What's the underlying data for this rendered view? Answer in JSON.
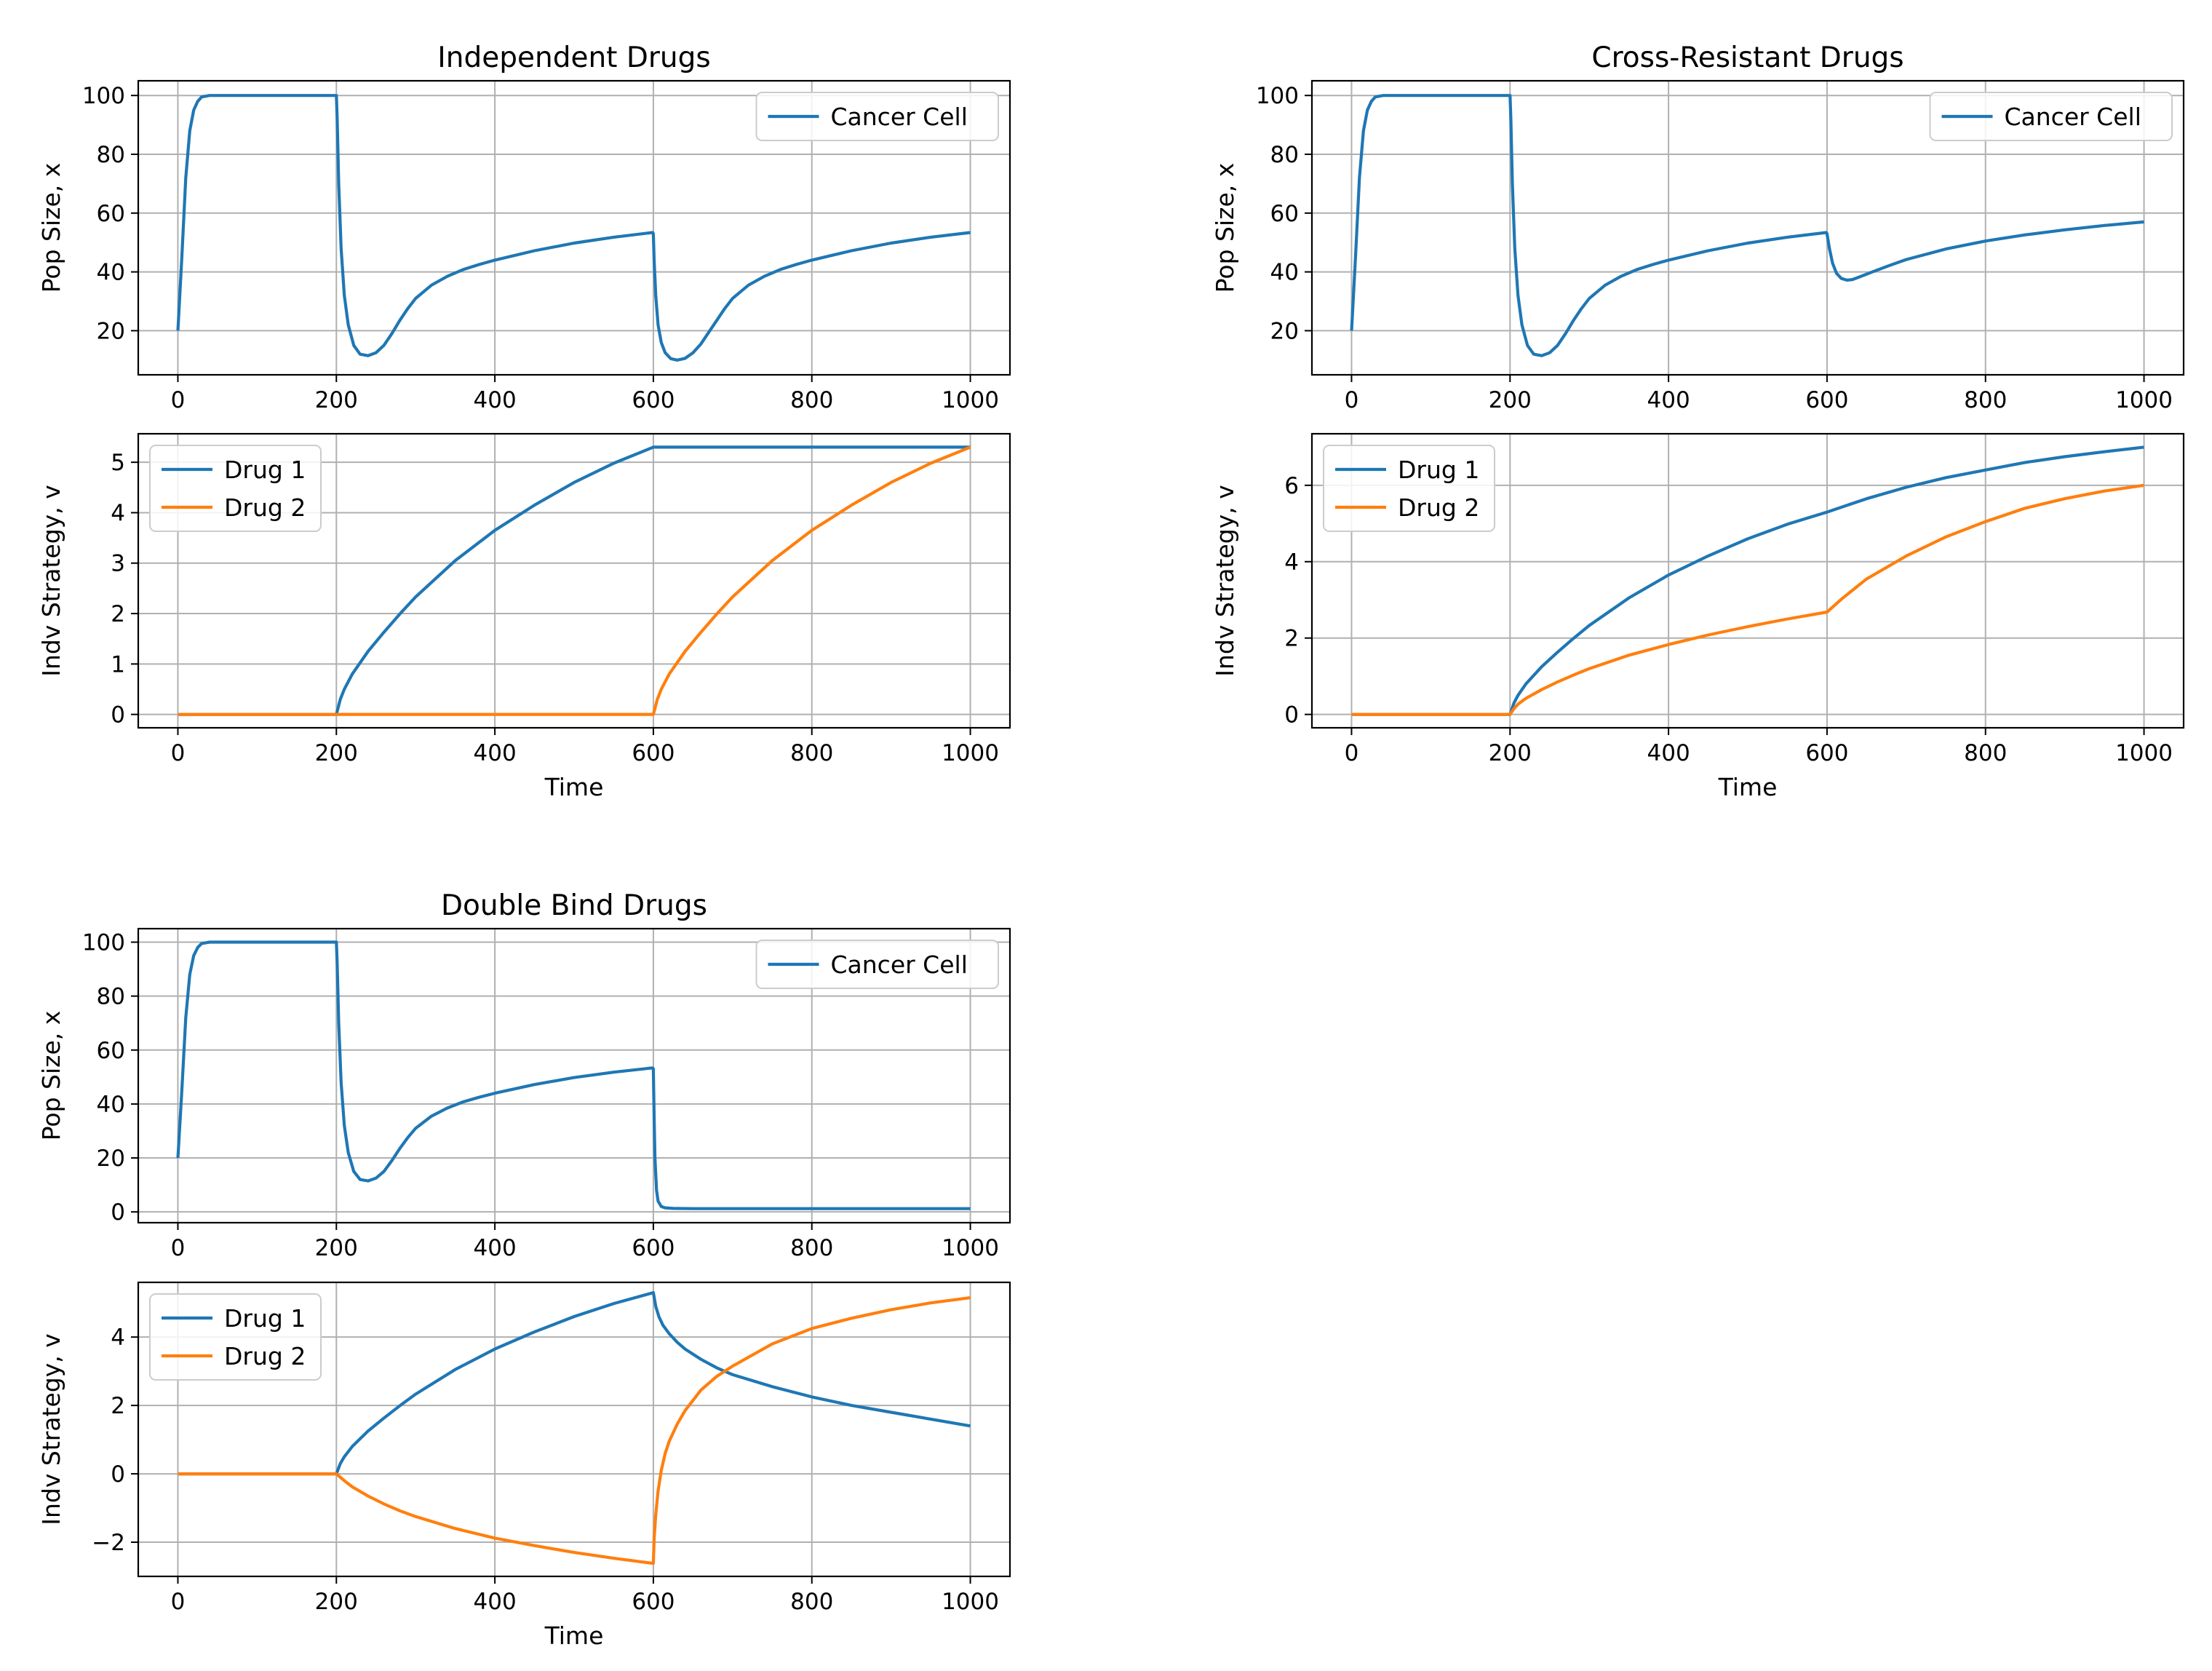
{
  "figure": {
    "background": "#ffffff"
  },
  "colors": {
    "series1": "#1f77b4",
    "series2": "#ff7f0e",
    "grid": "#b0b0b0",
    "axes": "#000000",
    "legend_border": "#cccccc"
  },
  "chart_data": [
    {
      "id": "independent-pop",
      "type": "line",
      "title": "Independent Drugs",
      "xlabel": "",
      "ylabel": "Pop Size, x",
      "xlim": [
        -50,
        1050
      ],
      "ylim": [
        5,
        105
      ],
      "xticks": [
        0,
        200,
        400,
        600,
        800,
        1000
      ],
      "yticks": [
        20,
        40,
        60,
        80,
        100
      ],
      "grid": true,
      "legend": "upper-right",
      "series": [
        {
          "name": "Cancer Cell",
          "color": "#1f77b4",
          "x": [
            0,
            5,
            10,
            15,
            20,
            25,
            30,
            40,
            60,
            100,
            150,
            199,
            200,
            201,
            203,
            206,
            210,
            215,
            222,
            230,
            240,
            250,
            260,
            270,
            280,
            290,
            300,
            320,
            340,
            360,
            380,
            400,
            450,
            500,
            550,
            599,
            600,
            601,
            603,
            606,
            610,
            615,
            622,
            630,
            640,
            650,
            660,
            670,
            680,
            690,
            700,
            720,
            740,
            760,
            780,
            800,
            850,
            900,
            950,
            1000
          ],
          "y": [
            20,
            45,
            72,
            88,
            95,
            98,
            99.5,
            100,
            100,
            100,
            100,
            100,
            100,
            92,
            70,
            48,
            32,
            22,
            15,
            12,
            11.5,
            12.5,
            15,
            19,
            23.5,
            27.5,
            31,
            35.5,
            38.5,
            40.8,
            42.5,
            44,
            47.2,
            49.8,
            51.8,
            53.4,
            53,
            44,
            32,
            22,
            16,
            12.5,
            10.5,
            10,
            10.6,
            12.5,
            15.5,
            19.5,
            23.5,
            27.5,
            31,
            35.5,
            38.5,
            40.8,
            42.5,
            44,
            47.2,
            49.8,
            51.8,
            53.4
          ]
        }
      ]
    },
    {
      "id": "independent-strategy",
      "type": "line",
      "title": "",
      "xlabel": "Time",
      "ylabel": "Indv Strategy, v",
      "xlim": [
        -50,
        1050
      ],
      "ylim": [
        -0.265,
        5.565
      ],
      "xticks": [
        0,
        200,
        400,
        600,
        800,
        1000
      ],
      "yticks": [
        0,
        1,
        2,
        3,
        4,
        5
      ],
      "grid": true,
      "legend": "upper-left",
      "series": [
        {
          "name": "Drug 1",
          "color": "#1f77b4",
          "x": [
            0,
            200,
            205,
            210,
            220,
            240,
            260,
            280,
            300,
            350,
            400,
            450,
            500,
            550,
            600,
            800,
            1000
          ],
          "y": [
            0,
            0,
            0.3,
            0.5,
            0.8,
            1.25,
            1.63,
            1.99,
            2.33,
            3.05,
            3.65,
            4.15,
            4.6,
            4.98,
            5.3,
            5.3,
            5.3
          ]
        },
        {
          "name": "Drug 2",
          "color": "#ff7f0e",
          "x": [
            0,
            200,
            600,
            605,
            610,
            620,
            640,
            660,
            680,
            700,
            750,
            800,
            850,
            900,
            950,
            1000
          ],
          "y": [
            0,
            0,
            0,
            0.3,
            0.5,
            0.8,
            1.25,
            1.63,
            1.99,
            2.33,
            3.05,
            3.65,
            4.15,
            4.6,
            4.98,
            5.3
          ]
        }
      ]
    },
    {
      "id": "cross-pop",
      "type": "line",
      "title": "Cross-Resistant Drugs",
      "xlabel": "",
      "ylabel": "Pop Size, x",
      "xlim": [
        -50,
        1050
      ],
      "ylim": [
        5,
        105
      ],
      "xticks": [
        0,
        200,
        400,
        600,
        800,
        1000
      ],
      "yticks": [
        20,
        40,
        60,
        80,
        100
      ],
      "grid": true,
      "legend": "upper-right",
      "series": [
        {
          "name": "Cancer Cell",
          "color": "#1f77b4",
          "x": [
            0,
            5,
            10,
            15,
            20,
            25,
            30,
            40,
            60,
            100,
            150,
            199,
            200,
            201,
            203,
            206,
            210,
            215,
            222,
            230,
            240,
            250,
            260,
            270,
            280,
            290,
            300,
            320,
            340,
            360,
            380,
            400,
            450,
            500,
            550,
            599,
            600,
            603,
            607,
            612,
            618,
            625,
            632,
            640,
            660,
            680,
            700,
            750,
            800,
            850,
            900,
            950,
            1000
          ],
          "y": [
            20,
            45,
            72,
            88,
            95,
            98,
            99.5,
            100,
            100,
            100,
            100,
            100,
            100,
            92,
            70,
            48,
            32,
            22,
            15,
            12,
            11.5,
            12.5,
            15,
            19,
            23.5,
            27.5,
            31,
            35.5,
            38.5,
            40.8,
            42.5,
            44,
            47.2,
            49.8,
            51.8,
            53.4,
            53,
            48,
            43,
            39.5,
            37.8,
            37.2,
            37.4,
            38.2,
            40.3,
            42.3,
            44.2,
            47.8,
            50.5,
            52.6,
            54.3,
            55.8,
            57
          ]
        }
      ]
    },
    {
      "id": "cross-strategy",
      "type": "line",
      "title": "",
      "xlabel": "Time",
      "ylabel": "Indv Strategy, v",
      "xlim": [
        -50,
        1050
      ],
      "ylim": [
        -0.35,
        7.35
      ],
      "xticks": [
        0,
        200,
        400,
        600,
        800,
        1000
      ],
      "yticks": [
        0,
        2,
        4,
        6
      ],
      "grid": true,
      "legend": "upper-left",
      "series": [
        {
          "name": "Drug 1",
          "color": "#1f77b4",
          "x": [
            0,
            200,
            205,
            210,
            220,
            240,
            260,
            280,
            300,
            350,
            400,
            450,
            500,
            550,
            600,
            650,
            700,
            750,
            800,
            850,
            900,
            950,
            1000
          ],
          "y": [
            0,
            0,
            0.3,
            0.5,
            0.8,
            1.25,
            1.63,
            1.99,
            2.33,
            3.05,
            3.65,
            4.15,
            4.6,
            4.98,
            5.3,
            5.65,
            5.95,
            6.2,
            6.4,
            6.6,
            6.75,
            6.88,
            7
          ]
        },
        {
          "name": "Drug 2",
          "color": "#ff7f0e",
          "x": [
            0,
            200,
            205,
            210,
            220,
            240,
            260,
            280,
            300,
            350,
            400,
            450,
            500,
            550,
            600,
            620,
            650,
            700,
            750,
            800,
            850,
            900,
            950,
            1000
          ],
          "y": [
            0,
            0,
            0.15,
            0.27,
            0.42,
            0.65,
            0.85,
            1.03,
            1.2,
            1.55,
            1.83,
            2.08,
            2.3,
            2.5,
            2.68,
            3.05,
            3.55,
            4.15,
            4.65,
            5.05,
            5.4,
            5.65,
            5.85,
            6
          ]
        }
      ]
    },
    {
      "id": "double-pop",
      "type": "line",
      "title": "Double Bind Drugs",
      "xlabel": "",
      "ylabel": "Pop Size, x",
      "xlim": [
        -50,
        1050
      ],
      "ylim": [
        -4,
        105
      ],
      "xticks": [
        0,
        200,
        400,
        600,
        800,
        1000
      ],
      "yticks": [
        0,
        20,
        40,
        60,
        80,
        100
      ],
      "grid": true,
      "legend": "upper-right",
      "series": [
        {
          "name": "Cancer Cell",
          "color": "#1f77b4",
          "x": [
            0,
            5,
            10,
            15,
            20,
            25,
            30,
            40,
            60,
            100,
            150,
            199,
            200,
            201,
            203,
            206,
            210,
            215,
            222,
            230,
            240,
            250,
            260,
            270,
            280,
            290,
            300,
            320,
            340,
            360,
            380,
            400,
            450,
            500,
            550,
            599,
            600,
            601,
            602,
            604,
            606,
            610,
            615,
            625,
            650,
            700,
            800,
            1000
          ],
          "y": [
            20,
            45,
            72,
            88,
            95,
            98,
            99.5,
            100,
            100,
            100,
            100,
            100,
            100,
            92,
            70,
            48,
            32,
            22,
            15,
            12,
            11.5,
            12.5,
            15,
            19,
            23.5,
            27.5,
            31,
            35.5,
            38.5,
            40.8,
            42.5,
            44,
            47.2,
            49.8,
            51.8,
            53.4,
            53,
            35,
            20,
            8,
            4,
            2,
            1.5,
            1.3,
            1.2,
            1.2,
            1.2,
            1.2
          ]
        }
      ]
    },
    {
      "id": "double-strategy",
      "type": "line",
      "title": "",
      "xlabel": "Time",
      "ylabel": "Indv Strategy, v",
      "xlim": [
        -50,
        1050
      ],
      "ylim": [
        -3.0,
        5.6
      ],
      "xticks": [
        0,
        200,
        400,
        600,
        800,
        1000
      ],
      "yticks": [
        -2,
        0,
        2,
        4
      ],
      "grid": true,
      "legend": "upper-left",
      "series": [
        {
          "name": "Drug 1",
          "color": "#1f77b4",
          "x": [
            0,
            200,
            205,
            210,
            220,
            240,
            260,
            280,
            300,
            350,
            400,
            450,
            500,
            550,
            600,
            603,
            607,
            612,
            620,
            630,
            640,
            660,
            680,
            700,
            750,
            800,
            850,
            900,
            950,
            1000
          ],
          "y": [
            0,
            0,
            0.3,
            0.5,
            0.8,
            1.25,
            1.63,
            1.99,
            2.33,
            3.05,
            3.65,
            4.15,
            4.6,
            4.98,
            5.3,
            4.9,
            4.6,
            4.35,
            4.1,
            3.85,
            3.65,
            3.35,
            3.1,
            2.9,
            2.55,
            2.25,
            2.0,
            1.8,
            1.6,
            1.4
          ]
        },
        {
          "name": "Drug 2",
          "color": "#ff7f0e",
          "x": [
            0,
            200,
            210,
            220,
            240,
            260,
            280,
            300,
            350,
            400,
            450,
            500,
            550,
            600,
            601,
            603,
            606,
            610,
            615,
            620,
            630,
            640,
            660,
            680,
            700,
            750,
            800,
            850,
            900,
            950,
            1000
          ],
          "y": [
            0,
            0,
            -0.2,
            -0.38,
            -0.65,
            -0.88,
            -1.08,
            -1.25,
            -1.6,
            -1.88,
            -2.1,
            -2.3,
            -2.47,
            -2.62,
            -1.9,
            -1.2,
            -0.5,
            0.1,
            0.6,
            0.95,
            1.45,
            1.85,
            2.45,
            2.85,
            3.15,
            3.8,
            4.25,
            4.55,
            4.8,
            5.0,
            5.15
          ]
        }
      ]
    }
  ]
}
